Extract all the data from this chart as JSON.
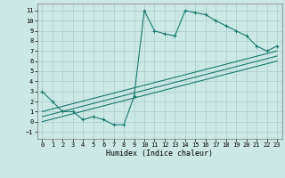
{
  "xlabel": "Humidex (Indice chaleur)",
  "background_color": "#cce8e4",
  "grid_color": "#aaccca",
  "line_color": "#1a7a6e",
  "xlim": [
    -0.5,
    23.5
  ],
  "ylim": [
    -1.7,
    11.7
  ],
  "xticks": [
    0,
    1,
    2,
    3,
    4,
    5,
    6,
    7,
    8,
    9,
    10,
    11,
    12,
    13,
    14,
    15,
    16,
    17,
    18,
    19,
    20,
    21,
    22,
    23
  ],
  "yticks": [
    -1,
    0,
    1,
    2,
    3,
    4,
    5,
    6,
    7,
    8,
    9,
    10,
    11
  ],
  "line1_x": [
    0,
    1,
    2,
    3,
    4,
    5,
    6,
    7,
    8,
    9,
    10,
    11,
    12,
    13,
    14,
    15,
    16,
    17,
    18,
    19,
    20,
    21,
    22,
    23
  ],
  "line1_y": [
    3,
    2,
    1,
    1,
    0.2,
    0.5,
    0.2,
    -0.3,
    -0.3,
    2.5,
    11,
    9,
    8.7,
    8.5,
    11,
    10.8,
    10.6,
    10,
    9.5,
    9,
    8.5,
    7.5,
    7,
    7.5
  ],
  "line3_x": [
    0,
    23
  ],
  "line3_y": [
    1,
    7
  ],
  "line4_x": [
    0,
    23
  ],
  "line4_y": [
    0.5,
    6.5
  ],
  "line5_x": [
    0,
    23
  ],
  "line5_y": [
    0,
    6
  ]
}
